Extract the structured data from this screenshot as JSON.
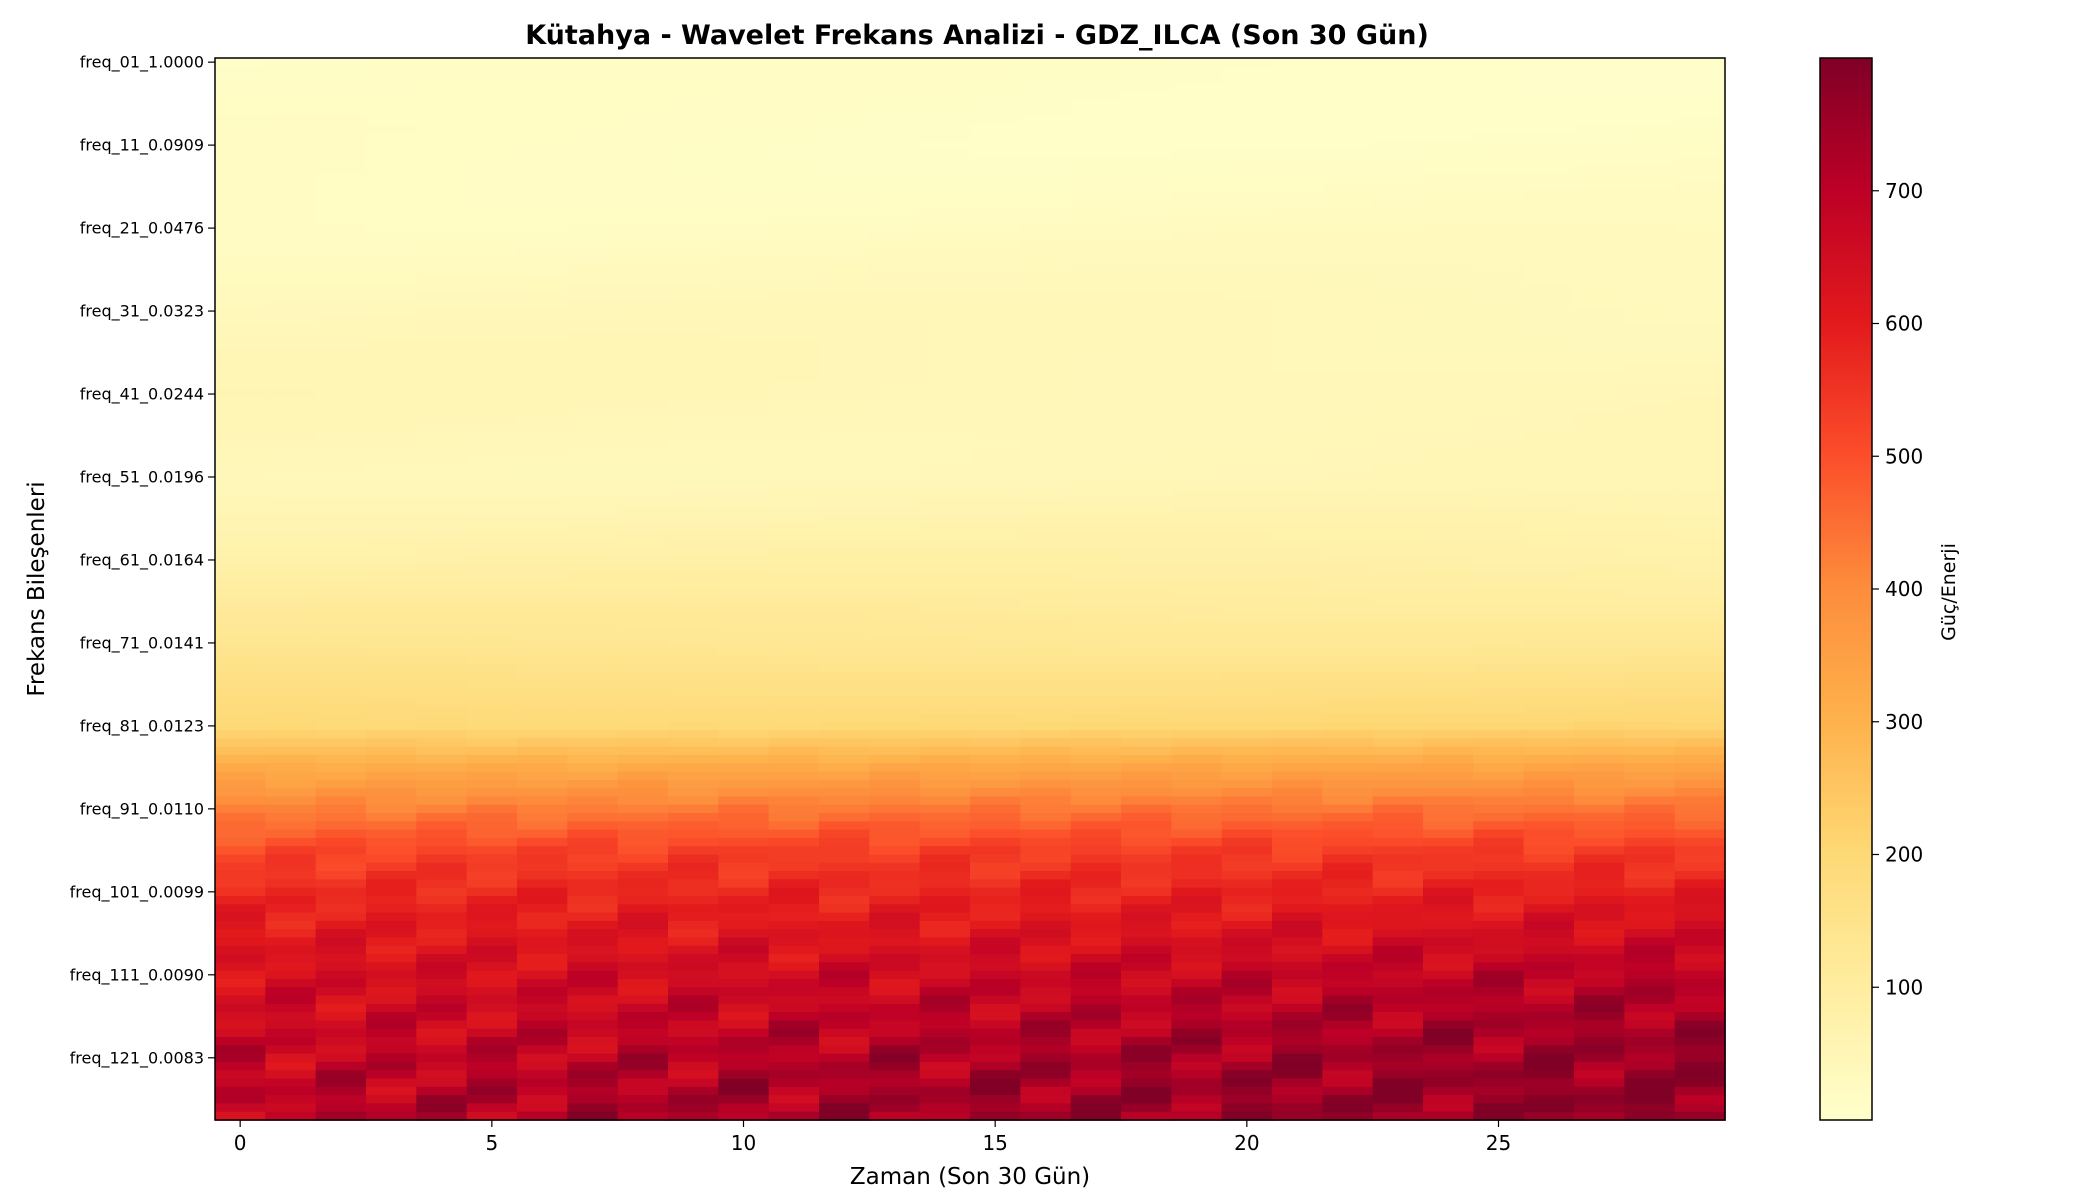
{
  "chart_data": {
    "type": "heatmap",
    "title": "Kütahya - Wavelet Frekans Analizi - GDZ_ILCA (Son 30 Gün)",
    "xlabel": "Zaman (Son 30 Gün)",
    "ylabel": "Frekans Bileşenleri",
    "colorbar_label": "Güç/Enerji",
    "colormap": "YlOrRd",
    "colormap_stops": [
      "#ffffcc",
      "#ffeda0",
      "#fed976",
      "#feb24c",
      "#fd8d3c",
      "#fc4e2a",
      "#e31a1c",
      "#bd0026",
      "#800026"
    ],
    "xlim": [
      -0.5,
      29.5
    ],
    "x_ticks": [
      0,
      5,
      10,
      15,
      20,
      25
    ],
    "n_time": 30,
    "n_freq": 128,
    "y_tick_labels": [
      "freq_01_1.0000",
      "freq_11_0.0909",
      "freq_21_0.0476",
      "freq_31_0.0323",
      "freq_41_0.0244",
      "freq_51_0.0196",
      "freq_61_0.0164",
      "freq_71_0.0141",
      "freq_81_0.0123",
      "freq_91_0.0110",
      "freq_101_0.0099",
      "freq_111_0.0090",
      "freq_121_0.0083"
    ],
    "y_tick_rows": [
      0,
      10,
      20,
      30,
      40,
      50,
      60,
      70,
      80,
      90,
      100,
      110,
      120
    ],
    "color_range": [
      0,
      800
    ],
    "colorbar_ticks": [
      100,
      200,
      300,
      400,
      500,
      600,
      700
    ],
    "value_profile_by_row": {
      "rows": [
        0,
        10,
        20,
        30,
        40,
        50,
        60,
        70,
        80,
        85,
        90,
        95,
        100,
        105,
        110,
        115,
        120,
        127
      ],
      "values": [
        10,
        15,
        25,
        40,
        50,
        45,
        80,
        130,
        200,
        320,
        420,
        510,
        560,
        600,
        640,
        660,
        680,
        700
      ]
    },
    "grid": false
  }
}
